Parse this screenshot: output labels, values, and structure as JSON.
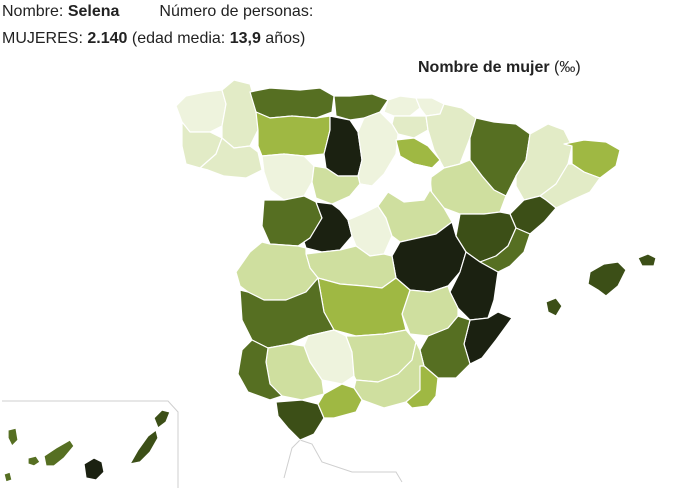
{
  "header": {
    "name_label": "Nombre:",
    "name_value": "Selena",
    "count_label": "Número de personas:",
    "women_label": "MUJERES:",
    "women_value": "2.140",
    "age_prefix": "(edad media:",
    "age_value": "13,9",
    "age_suffix": "años)"
  },
  "legend": {
    "title": "Nombre de mujer",
    "unit": "(‰)"
  },
  "palette": {
    "c0": "#ffffff",
    "c1": "#eef3dd",
    "c2": "#e2ebc6",
    "c3": "#cfdf9f",
    "c4": "#bcd37e",
    "c5": "#9fb843",
    "c6": "#6e8a2c",
    "c7": "#566f22",
    "c8": "#3c4f17",
    "c9": "#1b2111"
  },
  "regions": {
    "coruna": "c1",
    "lugo": "c2",
    "pontevedra": "c2",
    "ourense": "c2",
    "asturias": "c7",
    "cantabria": "c7",
    "vizcaya": "c1",
    "guipuzcoa": "c1",
    "alava": "c2",
    "navarra": "c2",
    "huesca": "c7",
    "lerida": "c2",
    "gerona": "c5",
    "barcelona": "c2",
    "tarragona": "c8",
    "leon": "c5",
    "palencia": "c9",
    "burgos": "c1",
    "larioja": "c5",
    "zaragoza": "c3",
    "zamora": "c1",
    "valladolid": "c3",
    "soria": "c0",
    "segovia": "c0",
    "salamanca": "c7",
    "avila": "c9",
    "madrid": "c1",
    "guadalajara": "c3",
    "teruel": "c8",
    "castellon": "c7",
    "caceres": "c3",
    "toledo": "c3",
    "cuenca": "c9",
    "valencia": "c9",
    "badajoz": "c7",
    "ciudadreal": "c5",
    "albacete": "c3",
    "alicante": "c9",
    "huelva": "c7",
    "sevilla": "c3",
    "cordoba": "c1",
    "jaen": "c3",
    "granada": "c3",
    "almeria": "c5",
    "murcia": "c7",
    "cadiz": "c8",
    "malaga": "c5",
    "mallorca": "c8",
    "menorca": "c8",
    "ibiza": "c8",
    "tenerife": "c7",
    "lapalma": "c7",
    "gomera": "c7",
    "hierro": "c7",
    "grancanaria": "c9",
    "fuerteventura": "c8",
    "lanzarote": "c8"
  }
}
